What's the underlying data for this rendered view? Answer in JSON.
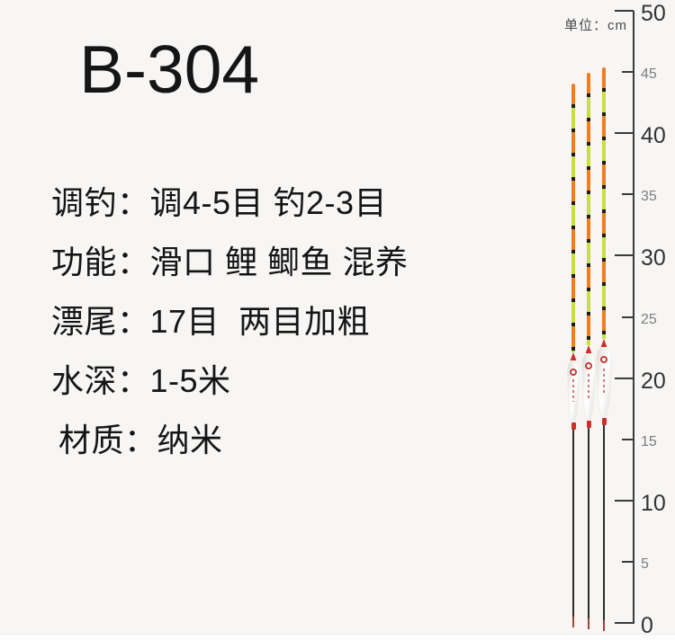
{
  "title": "B-304",
  "specs": {
    "lines": [
      "调钓：调4-5目 钓2-3目",
      "功能：滑口 鲤 鲫鱼 混养",
      "漂尾：17目  两目加粗",
      "水深：1-5米",
      "材质：纳米"
    ]
  },
  "ruler": {
    "unit_label": "单位：cm",
    "min": 0,
    "max": 50,
    "marks": [
      {
        "value": 50,
        "major": true
      },
      {
        "value": 45,
        "major": false
      },
      {
        "value": 40,
        "major": true
      },
      {
        "value": 35,
        "major": false
      },
      {
        "value": 30,
        "major": true
      },
      {
        "value": 25,
        "major": false
      },
      {
        "value": 20,
        "major": true
      },
      {
        "value": 15,
        "major": false
      },
      {
        "value": 10,
        "major": true
      },
      {
        "value": 5,
        "major": false
      },
      {
        "value": 0,
        "major": true
      }
    ]
  },
  "floats": {
    "count": 3,
    "description": "three nano fishing floats with striped tip antennas, white teardrop bodies with red logo, long dark stems"
  },
  "colors": {
    "bg": "#f7f6f5",
    "text": "#151515",
    "antenna_orange": "#ee7e1f",
    "antenna_green": "#c8e03e",
    "antenna_band": "#1c1c14",
    "cap_red": "#cf2f28",
    "body_white": "#fcfcfb",
    "body_shade": "#dddad5",
    "logo_red": "#c43c36",
    "stem_dark": "#2d2d2b",
    "stem_tip": "#9c4532",
    "ruler_line": "#3a3a3a",
    "ruler_major_text": "#333333",
    "ruler_minor_text": "#7d7d7d",
    "unit_text": "#4a4a4a"
  }
}
